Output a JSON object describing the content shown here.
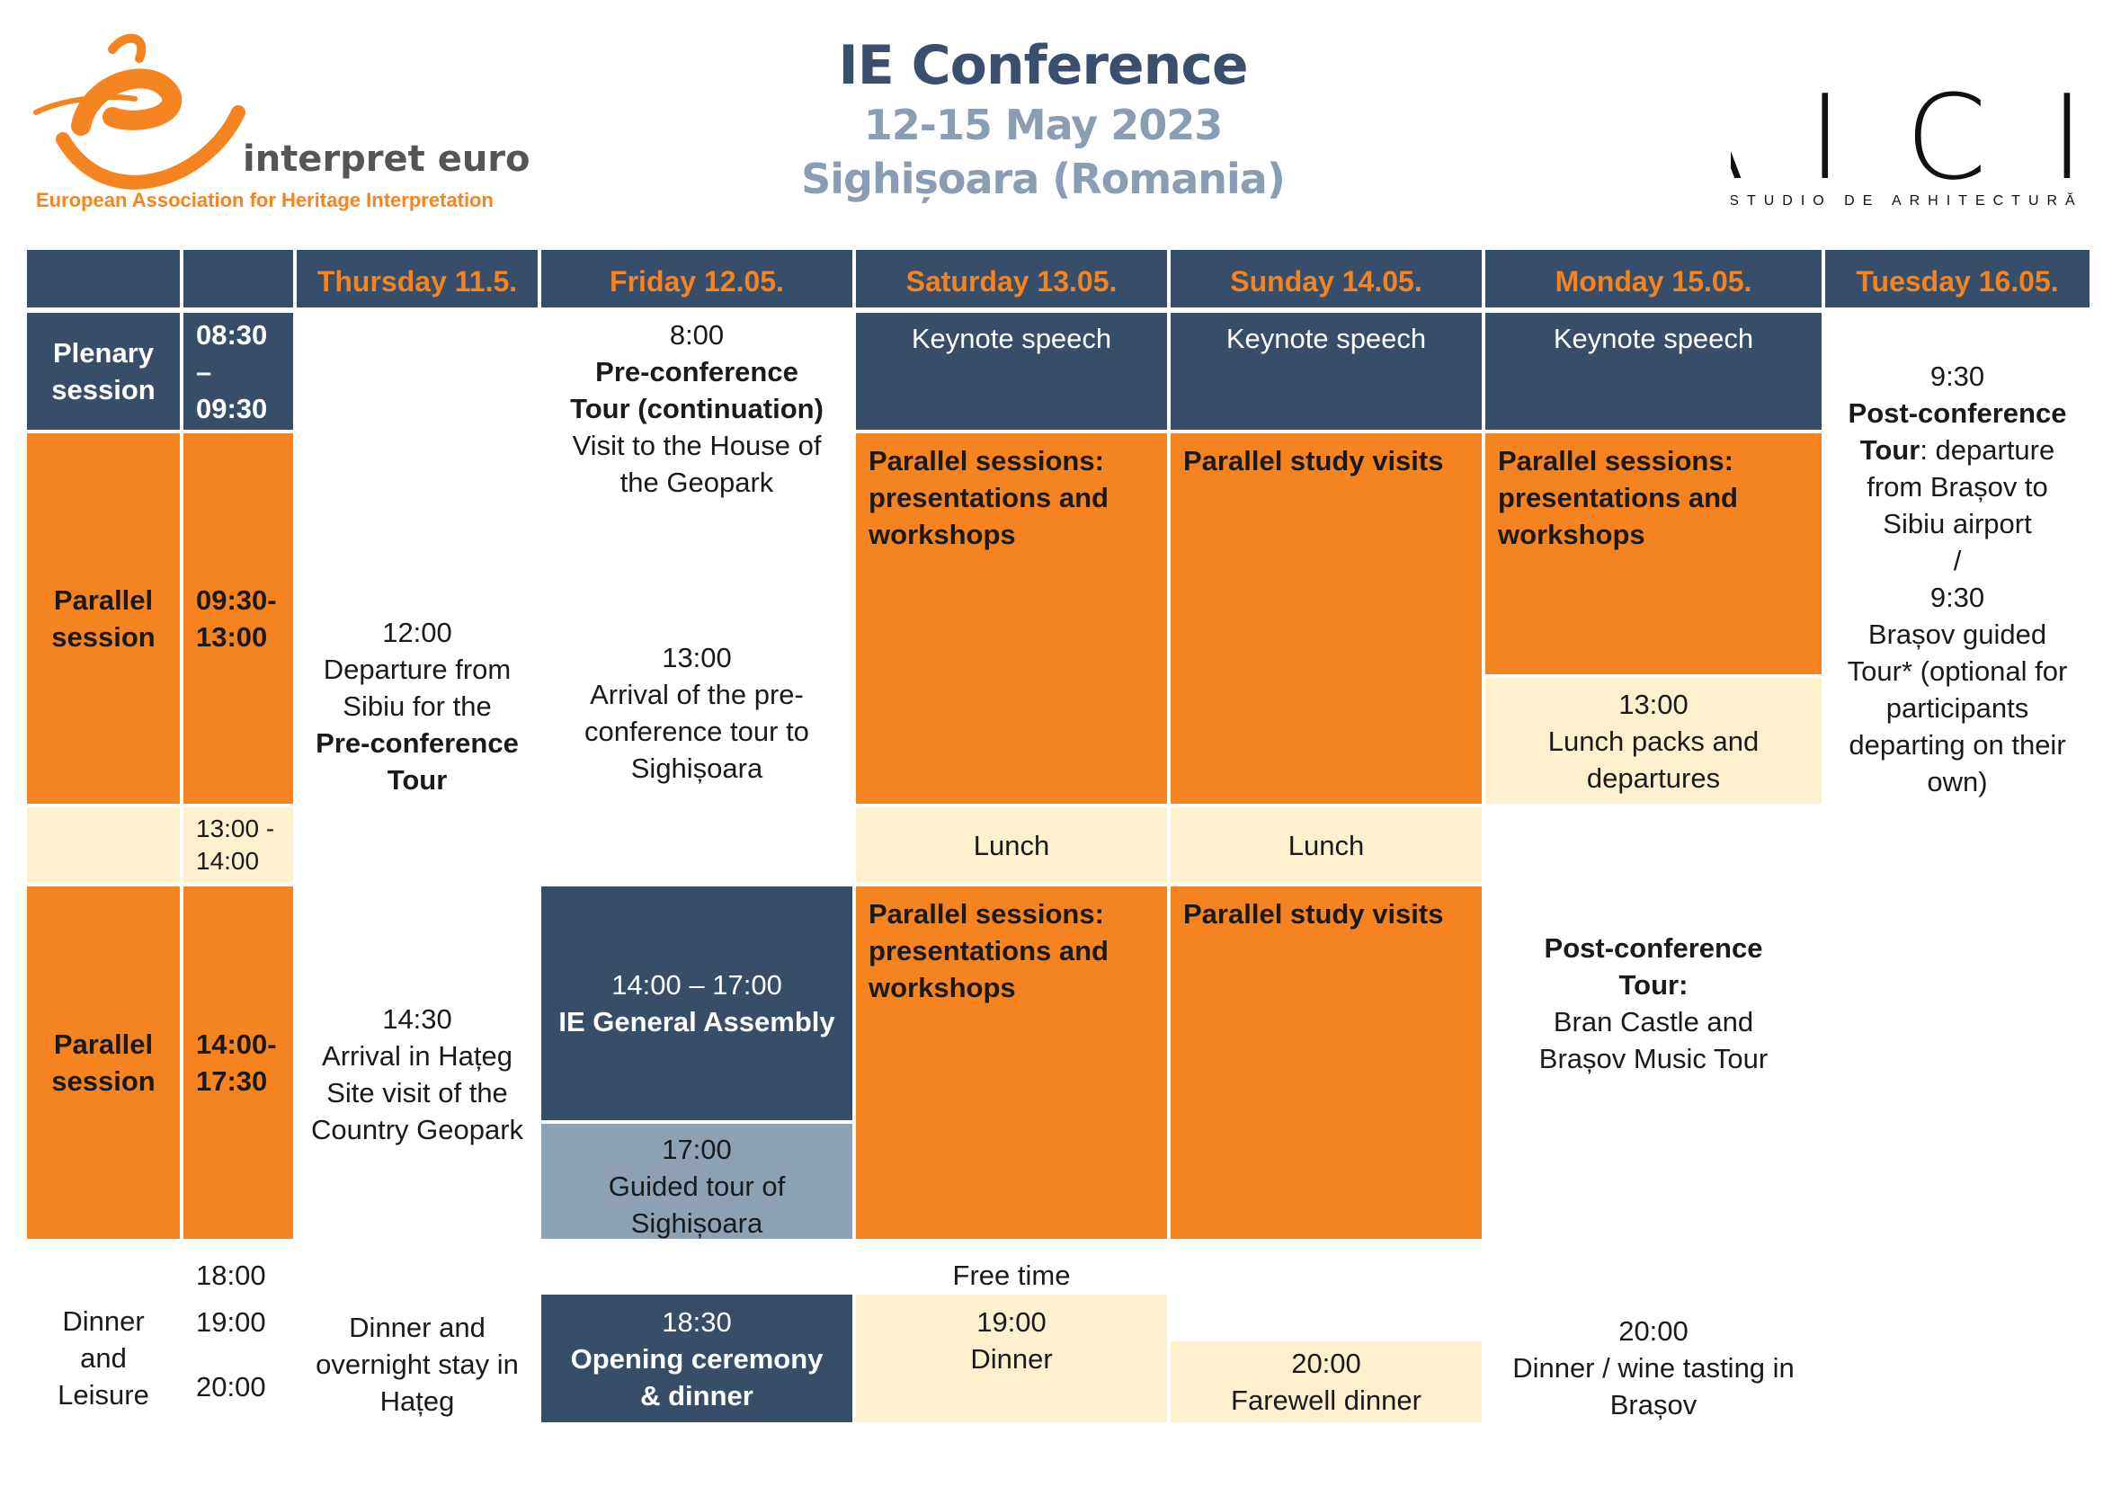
{
  "header": {
    "title": "IE Conference",
    "dates": "12-15 May 2023",
    "place": "Sighișoara (Romania)",
    "logo_left": {
      "name": "interpret europe",
      "tagline": "European Association for Heritage Interpretation"
    },
    "logo_right": {
      "name": "AICI",
      "tagline": "STUDIO DE ARHITECTURĂ"
    }
  },
  "colors": {
    "navy": "#374e6a",
    "orange": "#f5831f",
    "cream": "#fdf1cd",
    "grey": "#8ea1b3",
    "title": "#3a4f6d",
    "subtitle": "#8a9db2"
  },
  "days": [
    "Thursday 11.5.",
    "Friday 12.05.",
    "Saturday 13.05.",
    "Sunday 14.05.",
    "Monday 15.05.",
    "Tuesday 16.05."
  ],
  "rows": {
    "plenary": {
      "label1": "Plenary",
      "label2": "session",
      "time1": "08:30 –",
      "time2": "09:30"
    },
    "parallel1": {
      "label1": "Parallel",
      "label2": "session",
      "time1": "09:30-",
      "time2": "13:00"
    },
    "lunch": {
      "time1": "13:00 -",
      "time2": "14:00"
    },
    "parallel2": {
      "label1": "Parallel",
      "label2": "session",
      "time1": "14:00-",
      "time2": "17:30"
    },
    "dinner": {
      "label1": "Dinner",
      "label2": "and",
      "label3": "Leisure",
      "time1": "18:00",
      "time2": "19:00",
      "time3": "20:00"
    }
  },
  "thursday": {
    "t1": {
      "time": "12:00",
      "l1": "Departure from",
      "l2": "Sibiu for the",
      "l3": "Pre-conference",
      "l4": "Tour"
    },
    "t2": {
      "time": "14:30",
      "l1": "Arrival in Hațeg",
      "l2": "Site visit of the",
      "l3": "Country Geopark"
    },
    "t3": {
      "l1": "Dinner and",
      "l2": "overnight stay in",
      "l3": "Hațeg"
    }
  },
  "friday": {
    "f1": {
      "time": "8:00",
      "b1": "Pre-conference",
      "b2": "Tour (continuation)",
      "l1": "Visit to the House of",
      "l2": "the Geopark"
    },
    "f2": {
      "time": "13:00",
      "l1": "Arrival of the pre-",
      "l2": "conference tour to",
      "l3": "Sighișoara"
    },
    "f3": {
      "time": "14:00 – 17:00",
      "b1": "IE General Assembly"
    },
    "f4": {
      "time": "17:00",
      "l1": "Guided tour of",
      "l2": "Sighișoara"
    },
    "f5": {
      "time": "18:30",
      "b1": "Opening ceremony",
      "b2": "& dinner"
    }
  },
  "saturday": {
    "keynote": "Keynote speech",
    "p1": {
      "l1": "Parallel sessions:",
      "l2": "presentations and",
      "l3": "workshops"
    },
    "lunch": "Lunch",
    "p2": {
      "l1": "Parallel sessions:",
      "l2": "presentations and",
      "l3": "workshops"
    },
    "free": "Free time",
    "dinner": {
      "time": "19:00",
      "l1": "Dinner"
    }
  },
  "sunday": {
    "keynote": "Keynote speech",
    "v1": "Parallel study visits",
    "lunch": "Lunch",
    "v2": "Parallel study visits",
    "dinner": {
      "time": "20:00",
      "l1": "Farewell dinner"
    }
  },
  "monday": {
    "keynote": "Keynote speech",
    "p1": {
      "l1": "Parallel sessions:",
      "l2": "presentations and",
      "l3": "workshops"
    },
    "lunch": {
      "time": "13:00",
      "l1": "Lunch packs and",
      "l2": "departures"
    },
    "tour": {
      "b1": "Post-conference",
      "b2": "Tour:",
      "l1": "Bran Castle and",
      "l2": "Brașov Music Tour"
    },
    "dinner": {
      "time": "20:00",
      "l1": "Dinner / wine tasting in",
      "l2": "Brașov"
    }
  },
  "tuesday": {
    "time1": "9:30",
    "b1": "Post-conference",
    "b2": "Tour",
    "l1": ": departure",
    "l2": "from Brașov to",
    "l3": "Sibiu airport",
    "sep": "/",
    "time2": "9:30",
    "l4": "Brașov guided",
    "l5": "Tour* (optional for",
    "l6": "participants",
    "l7": "departing on their",
    "l8": "own)"
  }
}
